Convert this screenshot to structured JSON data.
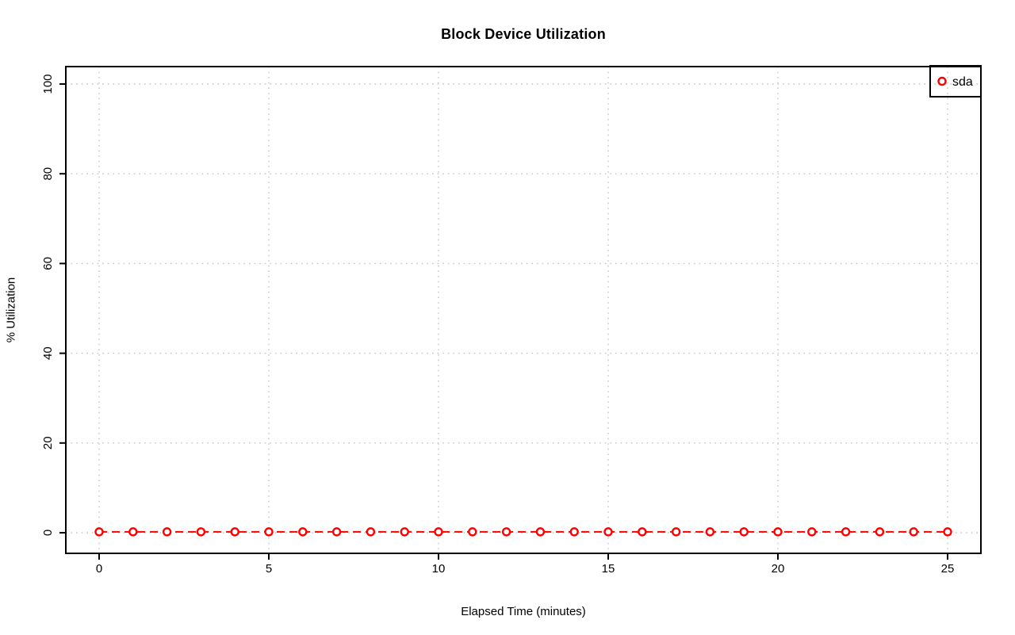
{
  "chart_data": {
    "type": "line",
    "title": "Block Device Utilization",
    "xlabel": "Elapsed Time (minutes)",
    "ylabel": "% Utilization",
    "xlim": [
      0,
      25
    ],
    "ylim": [
      0,
      100
    ],
    "x_ticks": [
      0,
      5,
      10,
      15,
      20,
      25
    ],
    "y_ticks": [
      0,
      20,
      40,
      60,
      80,
      100
    ],
    "grid": "dotted",
    "legend": {
      "position": "topright",
      "entries": [
        {
          "label": "sda",
          "color": "#ff0000",
          "marker": "open-circle"
        }
      ]
    },
    "series": [
      {
        "name": "sda",
        "color": "#ff0000",
        "marker": "open-circle",
        "line_style": "dashed",
        "x": [
          0,
          1,
          2,
          3,
          4,
          5,
          6,
          7,
          8,
          9,
          10,
          11,
          12,
          13,
          14,
          15,
          16,
          17,
          18,
          19,
          20,
          21,
          22,
          23,
          24,
          25
        ],
        "values": [
          0.2,
          0.2,
          0.2,
          0.2,
          0.2,
          0.2,
          0.2,
          0.2,
          0.2,
          0.2,
          0.2,
          0.2,
          0.2,
          0.2,
          0.2,
          0.2,
          0.2,
          0.2,
          0.2,
          0.2,
          0.2,
          0.2,
          0.2,
          0.2,
          0.2,
          0.2
        ]
      }
    ]
  },
  "colors": {
    "series": "#ff0000",
    "grid": "#c4c4c4",
    "axis": "#000000",
    "background": "#ffffff",
    "text": "#000000"
  }
}
